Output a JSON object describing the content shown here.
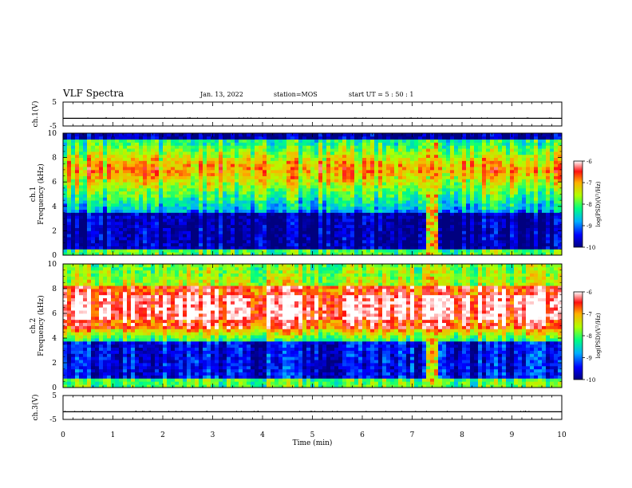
{
  "header": {
    "title": "VLF Spectra",
    "date": "Jan. 13, 2022",
    "station": "station=MOS",
    "start_ut": "start  UT =  5 : 50 : 1"
  },
  "chart_data": [
    {
      "type": "line",
      "panel": "ch1-voltage",
      "ylabel": "ch.1(V)",
      "ylim": [
        -5,
        5
      ],
      "yticks": [
        5,
        -5
      ],
      "xlim": [
        0,
        10
      ],
      "series": [
        {
          "values_const": -1.8
        }
      ]
    },
    {
      "type": "heatmap",
      "panel": "ch1-spectrogram",
      "ylabel": "ch.1\nFrequency (kHz)",
      "xlim": [
        0,
        10
      ],
      "ylim": [
        0,
        10
      ],
      "yticks": [
        0,
        2,
        4,
        6,
        8,
        10
      ],
      "colorbar": {
        "label": "log(PSD)(V²/Hz)",
        "ticks": [
          -6,
          -7,
          -8,
          -9,
          -10
        ],
        "range": [
          -10,
          -6
        ]
      },
      "description_values": {
        "emission_band_khz": [
          3.5,
          9.5
        ],
        "peak_band_khz": [
          6,
          9
        ],
        "burst_time_min": [
          7.3,
          7.55
        ]
      }
    },
    {
      "type": "heatmap",
      "panel": "ch2-spectrogram",
      "ylabel": "ch.2\nFrequency (kHz)",
      "xlim": [
        0,
        10
      ],
      "ylim": [
        0,
        10
      ],
      "yticks": [
        0,
        2,
        4,
        6,
        8,
        10
      ],
      "colorbar": {
        "label": "log(PSD)(V²/Hz)",
        "ticks": [
          -6,
          -7,
          -8,
          -9,
          -10
        ],
        "range": [
          -10,
          -6
        ]
      },
      "description_values": {
        "peak_band_khz": [
          4.8,
          8.2
        ],
        "burst_time_min": [
          7.3,
          7.55
        ]
      }
    },
    {
      "type": "line",
      "panel": "ch3-voltage",
      "ylabel": "ch.3(V)",
      "ylim": [
        -5,
        5
      ],
      "yticks": [
        5,
        -5
      ],
      "xlim": [
        0,
        10
      ],
      "series": [
        {
          "values_const": -1.8
        }
      ]
    }
  ],
  "xaxis": {
    "label": "Time (min)",
    "ticks": [
      "0",
      "1",
      "2",
      "3",
      "4",
      "5",
      "6",
      "7",
      "8",
      "9",
      "10"
    ]
  }
}
